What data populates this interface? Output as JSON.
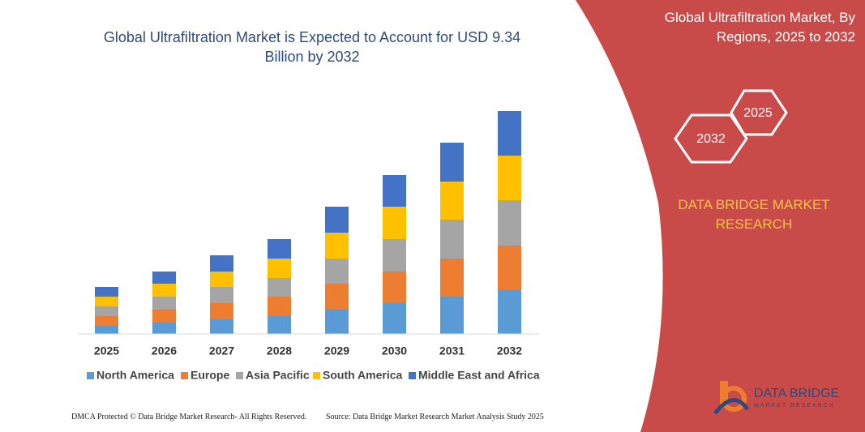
{
  "chart_data": {
    "type": "stacked_bar",
    "title": "Global Ultrafiltration Market is Expected to Account for USD 9.34 Billion by 2032",
    "categories": [
      "2025",
      "2026",
      "2027",
      "2028",
      "2029",
      "2030",
      "2031",
      "2032"
    ],
    "series": [
      {
        "name": "North America",
        "color": "#5b9bd5",
        "values": [
          10,
          14,
          18,
          22,
          30,
          38,
          46,
          54
        ]
      },
      {
        "name": "Europe",
        "color": "#ed7d31",
        "values": [
          12,
          16,
          20,
          24,
          32,
          39,
          47,
          55
        ]
      },
      {
        "name": "Asia Pacific",
        "color": "#a5a5a5",
        "values": [
          12,
          16,
          20,
          23,
          31,
          40,
          48,
          56
        ]
      },
      {
        "name": "South America",
        "color": "#ffc000",
        "values": [
          12,
          16,
          19,
          24,
          32,
          40,
          47,
          55
        ]
      },
      {
        "name": "Middle East and Africa",
        "color": "#4472c4",
        "values": [
          12,
          15,
          20,
          24,
          32,
          39,
          48,
          55
        ]
      }
    ]
  },
  "panel": {
    "title": "Global Ultrafiltration Market, By Regions, 2025 to 2032",
    "hex_labels": [
      "2025",
      "2032"
    ],
    "brand": "DATA BRIDGE MARKET RESEARCH"
  },
  "logo": {
    "name": "DATA BRIDGE",
    "tagline": "MARKET RESEARCH"
  },
  "footer": {
    "left": "DMCA Protected © Data Bridge Market Research- All Rights Reserved.",
    "right": "Source: Data Bridge Market Research Market Analysis Study 2025"
  }
}
